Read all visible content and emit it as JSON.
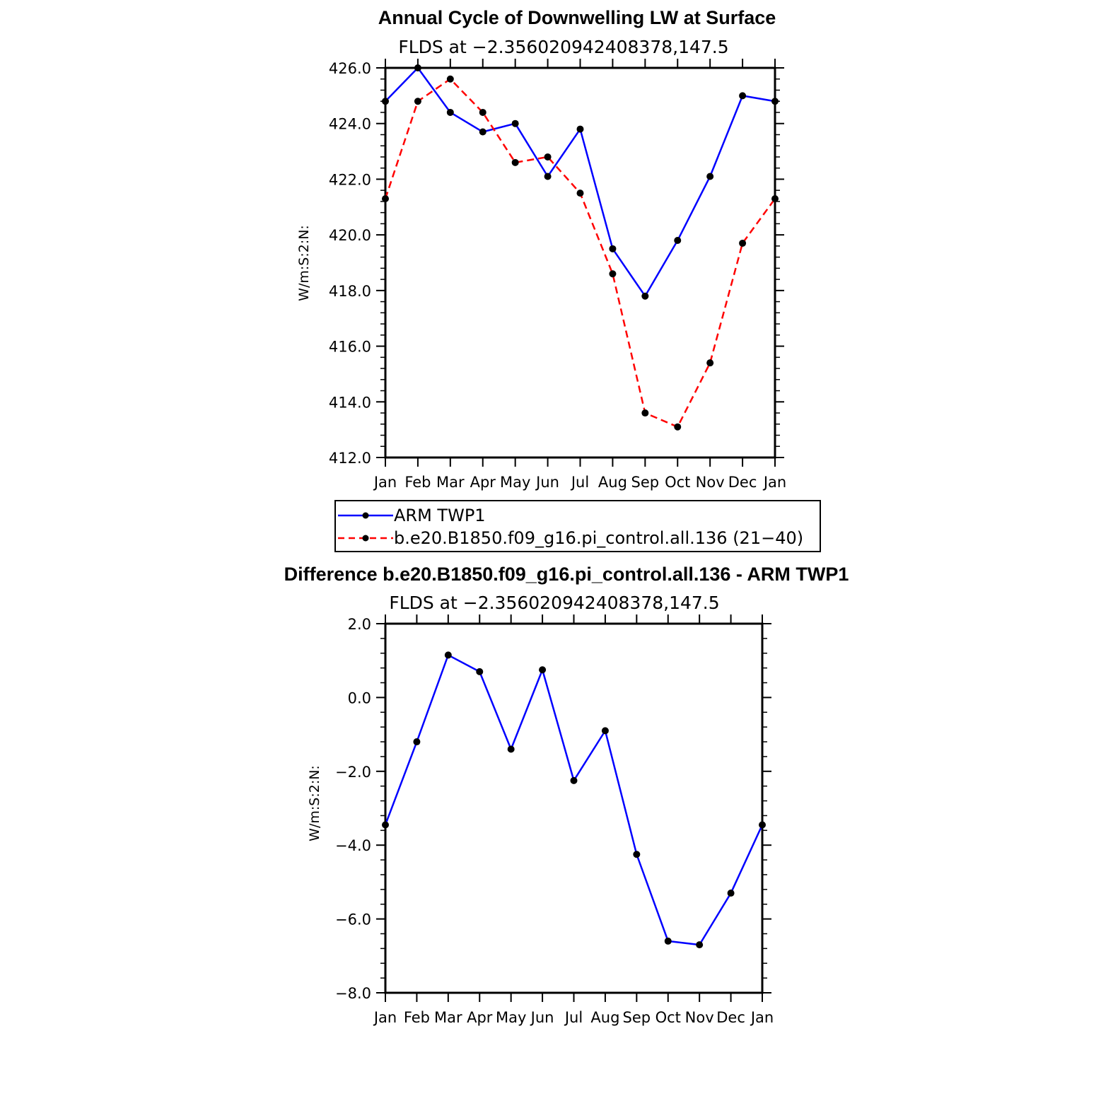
{
  "chart_data": [
    {
      "type": "line",
      "title": "Annual Cycle of Downwelling LW at Surface",
      "subtitle": "FLDS at −2.356020942408378,147.5",
      "ylabel": "W/m:S:2:N:",
      "xlabel": "",
      "categories": [
        "Jan",
        "Feb",
        "Mar",
        "Apr",
        "May",
        "Jun",
        "Jul",
        "Aug",
        "Sep",
        "Oct",
        "Nov",
        "Dec",
        "Jan"
      ],
      "yticks": [
        "412.0",
        "414.0",
        "416.0",
        "418.0",
        "420.0",
        "422.0",
        "424.0",
        "426.0"
      ],
      "ylim": [
        412,
        426
      ],
      "grid": false,
      "legend_position": "below",
      "series": [
        {
          "name": "ARM TWP1",
          "color": "#0000ff",
          "dash": "solid",
          "values": [
            424.8,
            426.0,
            424.4,
            423.7,
            424.0,
            422.1,
            423.8,
            419.5,
            417.8,
            419.8,
            422.1,
            425.0,
            424.8
          ]
        },
        {
          "name": "b.e20.B1850.f09_g16.pi_control.all.136 (21−40)",
          "color": "#ff0000",
          "dash": "dashed",
          "values": [
            421.3,
            424.8,
            425.6,
            424.4,
            422.6,
            422.8,
            421.5,
            418.6,
            413.6,
            413.1,
            415.4,
            419.7,
            421.3
          ]
        }
      ]
    },
    {
      "type": "line",
      "title": "Difference b.e20.B1850.f09_g16.pi_control.all.136 - ARM TWP1",
      "subtitle": "FLDS at −2.356020942408378,147.5",
      "ylabel": "W/m:S:2:N:",
      "xlabel": "",
      "categories": [
        "Jan",
        "Feb",
        "Mar",
        "Apr",
        "May",
        "Jun",
        "Jul",
        "Aug",
        "Sep",
        "Oct",
        "Nov",
        "Dec",
        "Jan"
      ],
      "yticks": [
        "−8.0",
        "−6.0",
        "−4.0",
        "−2.0",
        "0.0",
        "2.0"
      ],
      "ylim": [
        -8,
        2
      ],
      "grid": false,
      "series": [
        {
          "color": "#0000ff",
          "dash": "solid",
          "values": [
            -3.45,
            -1.2,
            1.15,
            0.7,
            -1.4,
            0.75,
            -2.25,
            -0.9,
            -4.25,
            -6.6,
            -6.7,
            -5.3,
            -3.45
          ]
        }
      ]
    }
  ],
  "marker_color": "#000000"
}
